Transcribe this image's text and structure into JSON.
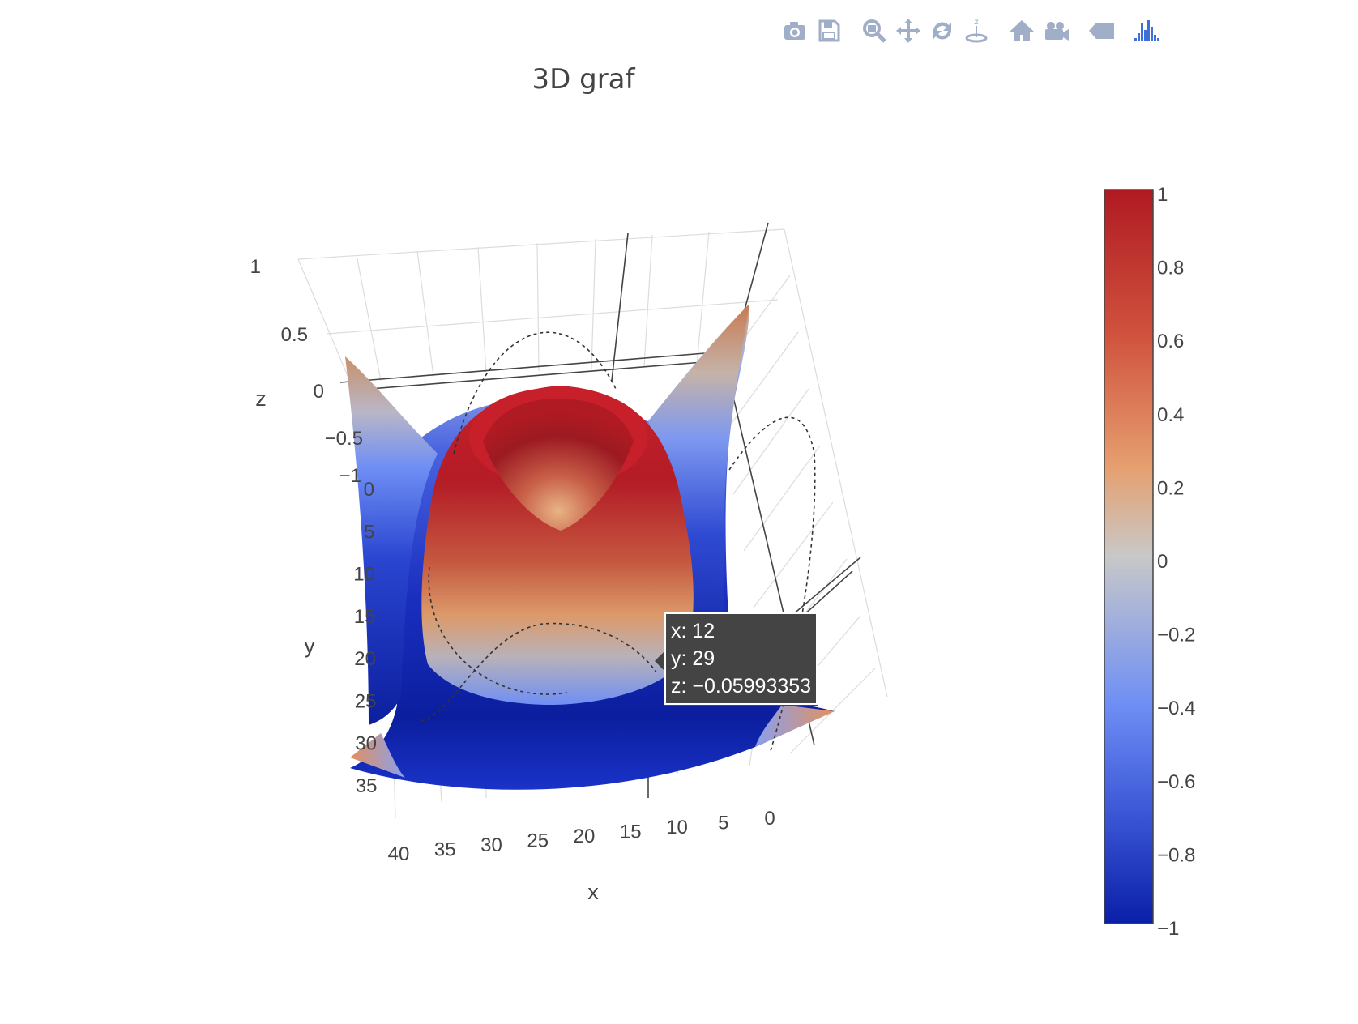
{
  "modebar": {
    "buttons": [
      {
        "name": "camera-icon",
        "group": 1
      },
      {
        "name": "save-icon",
        "group": 1
      },
      {
        "name": "zoom-icon",
        "group": 2
      },
      {
        "name": "pan-icon",
        "group": 2
      },
      {
        "name": "orbit-rotate-icon",
        "group": 2
      },
      {
        "name": "turntable-icon",
        "group": 2
      },
      {
        "name": "home-icon",
        "group": 3
      },
      {
        "name": "camera-video-icon",
        "group": 3
      },
      {
        "name": "hover-tag-icon",
        "group": 4
      },
      {
        "name": "plotly-logo-icon",
        "group": 5
      }
    ],
    "icon_color": "#a0aec8",
    "logo_color": "#3f6fd8"
  },
  "chart_data": {
    "type": "surface",
    "title": "3D graf",
    "xlabel": "x",
    "ylabel": "y",
    "zlabel": "z",
    "xticks": [
      "40",
      "35",
      "30",
      "25",
      "20",
      "15",
      "10",
      "5",
      "0"
    ],
    "yticks": [
      "0",
      "5",
      "10",
      "15",
      "20",
      "25",
      "30",
      "35"
    ],
    "zticks": [
      "1",
      "0.5",
      "0",
      "−0.5",
      "−1"
    ],
    "xlim": [
      0,
      40
    ],
    "ylim": [
      0,
      35
    ],
    "zlim": [
      -1,
      1
    ],
    "colorscale": {
      "stops": [
        "#0a1fa8",
        "#3b57d6",
        "#6f8ff5",
        "#c8c8c8",
        "#e6a070",
        "#d0533e",
        "#b01a22"
      ],
      "ticks": [
        "1",
        "0.8",
        "0.6",
        "0.4",
        "0.2",
        "0",
        "−0.2",
        "−0.4",
        "−0.6",
        "−0.8",
        "−1"
      ],
      "range": [
        -1,
        1
      ]
    },
    "hover": {
      "x_line": "x: 12",
      "y_line": "y: 29",
      "z_line": "z: −0.05993353"
    }
  }
}
